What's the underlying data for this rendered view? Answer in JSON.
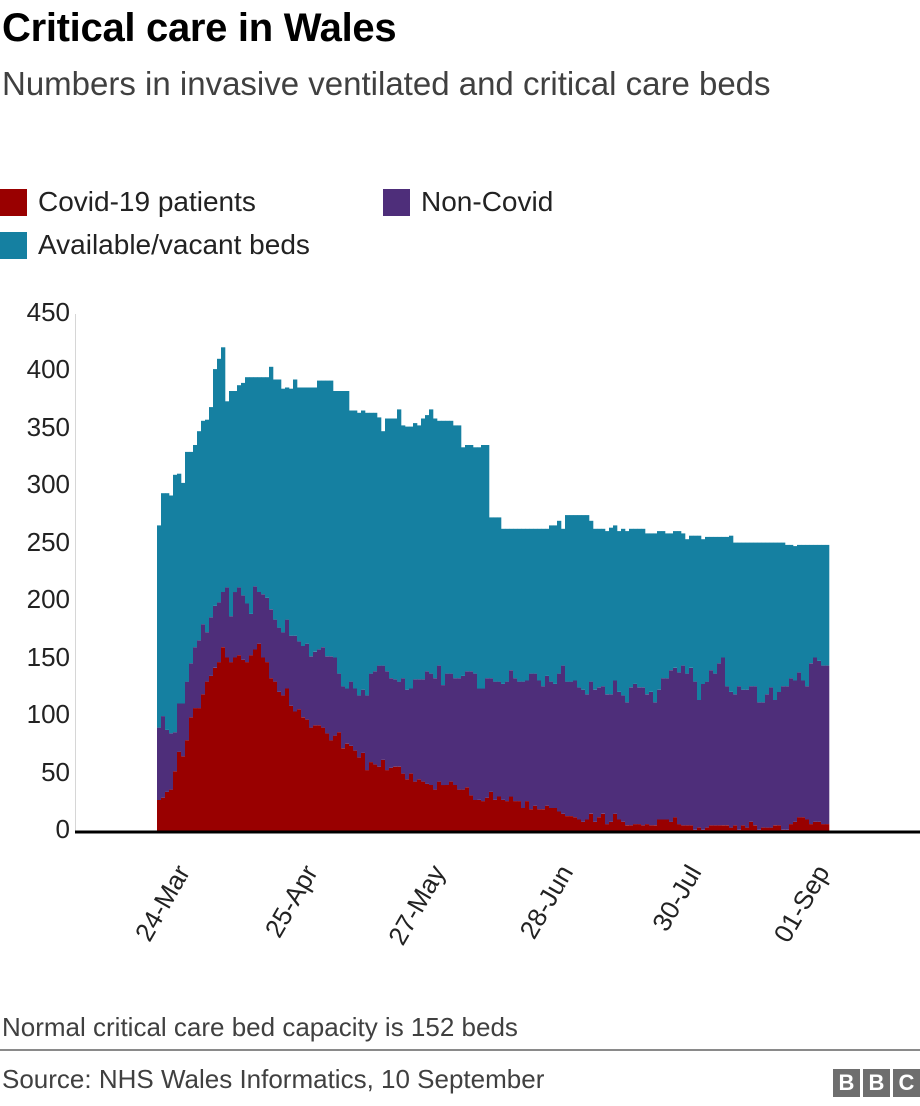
{
  "title": "Critical care in Wales",
  "subtitle": "Numbers in invasive ventilated and critical care beds",
  "note": "Normal critical care bed capacity is 152 beds",
  "source": "Source: NHS Wales Informatics, 10 September",
  "logo": [
    "B",
    "B",
    "C"
  ],
  "colors": {
    "covid": "#990000",
    "non_covid": "#4e2e7a",
    "available": "#1580a1",
    "axis": "#000000"
  },
  "chart_data": {
    "type": "bar",
    "stacked": true,
    "title": "Critical care in Wales",
    "subtitle": "Numbers in invasive ventilated and critical care beds",
    "xlabel": "",
    "ylabel": "",
    "ylim": [
      0,
      450
    ],
    "yticks": [
      0,
      50,
      100,
      150,
      200,
      250,
      300,
      350,
      400,
      450
    ],
    "xtick_labels": [
      "24-Mar",
      "25-Apr",
      "27-May",
      "28-Jun",
      "30-Jul",
      "01-Sep"
    ],
    "xtick_day_index": [
      6,
      38,
      70,
      102,
      134,
      166
    ],
    "legend": [
      "Covid-19 patients",
      "Non-Covid",
      "Available/vacant beds"
    ],
    "legend_position": "top-left",
    "grid": false,
    "series": [
      {
        "name": "Covid-19 patients",
        "color": "#990000",
        "values": [
          27,
          29,
          34,
          36,
          52,
          69,
          65,
          79,
          99,
          107,
          107,
          119,
          130,
          135,
          142,
          147,
          160,
          151,
          147,
          151,
          153,
          149,
          147,
          153,
          158,
          163,
          151,
          147,
          133,
          130,
          121,
          118,
          124,
          109,
          104,
          106,
          99,
          97,
          90,
          92,
          92,
          90,
          85,
          79,
          83,
          86,
          72,
          76,
          74,
          70,
          64,
          68,
          53,
          60,
          58,
          56,
          62,
          53,
          55,
          56,
          56,
          50,
          45,
          50,
          43,
          45,
          43,
          41,
          40,
          36,
          43,
          40,
          40,
          43,
          40,
          36,
          36,
          38,
          31,
          27,
          27,
          26,
          29,
          34,
          27,
          30,
          27,
          26,
          30,
          26,
          26,
          20,
          26,
          19,
          22,
          19,
          19,
          22,
          20,
          20,
          17,
          15,
          13,
          13,
          12,
          10,
          8,
          10,
          15,
          8,
          12,
          15,
          6,
          8,
          15,
          10,
          8,
          5,
          5,
          6,
          6,
          5,
          6,
          5,
          5,
          10,
          10,
          10,
          8,
          12,
          6,
          5,
          5,
          5,
          1,
          3,
          1,
          3,
          5,
          5,
          5,
          5,
          5,
          3,
          5,
          1,
          5,
          3,
          8,
          5,
          1,
          3,
          3,
          3,
          5,
          5,
          1,
          1,
          6,
          8,
          12,
          12,
          10,
          6,
          8,
          8,
          6,
          6
        ]
      },
      {
        "name": "Non-Covid",
        "color": "#4e2e7a",
        "values": [
          63,
          71,
          54,
          49,
          34,
          42,
          46,
          51,
          47,
          53,
          59,
          61,
          43,
          51,
          54,
          52,
          48,
          61,
          40,
          57,
          59,
          56,
          51,
          36,
          55,
          45,
          55,
          56,
          60,
          54,
          56,
          55,
          60,
          61,
          66,
          59,
          62,
          66,
          62,
          64,
          66,
          70,
          67,
          73,
          68,
          51,
          54,
          48,
          56,
          54,
          54,
          55,
          65,
          77,
          81,
          88,
          82,
          86,
          78,
          76,
          74,
          83,
          78,
          74,
          89,
          87,
          89,
          98,
          97,
          97,
          101,
          87,
          97,
          94,
          93,
          97,
          99,
          101,
          108,
          110,
          97,
          98,
          104,
          99,
          103,
          100,
          101,
          104,
          110,
          107,
          104,
          110,
          105,
          118,
          115,
          112,
          107,
          113,
          110,
          108,
          120,
          129,
          117,
          117,
          119,
          115,
          115,
          109,
          115,
          115,
          113,
          111,
          113,
          111,
          116,
          111,
          110,
          107,
          120,
          122,
          119,
          120,
          113,
          116,
          107,
          113,
          123,
          123,
          132,
          130,
          132,
          139,
          132,
          137,
          129,
          111,
          127,
          127,
          135,
          132,
          141,
          146,
          121,
          118,
          114,
          125,
          118,
          120,
          118,
          121,
          111,
          109,
          116,
          122,
          109,
          116,
          125,
          125,
          127,
          123,
          126,
          119,
          116,
          140,
          143,
          140,
          138,
          138
        ]
      },
      {
        "name": "Available/vacant beds",
        "color": "#1580a1",
        "values": [
          176,
          194,
          206,
          207,
          224,
          200,
          192,
          200,
          184,
          176,
          182,
          177,
          185,
          183,
          206,
          212,
          213,
          162,
          196,
          175,
          176,
          185,
          197,
          206,
          182,
          187,
          189,
          192,
          211,
          209,
          216,
          212,
          202,
          215,
          223,
          221,
          225,
          223,
          234,
          230,
          234,
          232,
          240,
          240,
          232,
          246,
          257,
          259,
          236,
          242,
          246,
          243,
          246,
          227,
          225,
          216,
          204,
          220,
          226,
          227,
          237,
          220,
          229,
          228,
          223,
          221,
          227,
          223,
          230,
          226,
          213,
          230,
          220,
          220,
          220,
          220,
          199,
          197,
          197,
          197,
          210,
          212,
          203,
          140,
          143,
          143,
          135,
          133,
          123,
          130,
          133,
          133,
          132,
          126,
          126,
          132,
          137,
          128,
          136,
          138,
          133,
          119,
          145,
          145,
          144,
          150,
          152,
          156,
          140,
          140,
          138,
          137,
          142,
          145,
          135,
          140,
          145,
          149,
          138,
          135,
          138,
          138,
          140,
          138,
          147,
          138,
          128,
          126,
          119,
          119,
          123,
          115,
          117,
          115,
          127,
          143,
          126,
          126,
          116,
          119,
          110,
          105,
          130,
          136,
          132,
          125,
          128,
          128,
          125,
          125,
          139,
          139,
          132,
          126,
          137,
          130,
          125,
          123,
          116,
          117,
          111,
          118,
          123,
          103,
          98,
          101,
          105,
          105
        ]
      }
    ]
  }
}
